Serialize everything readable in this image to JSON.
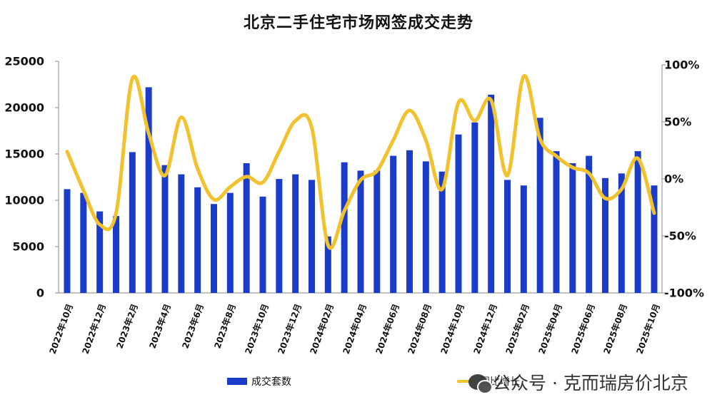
{
  "title": "北京二手住宅市场网签成交走势",
  "left_axis": {
    "ticks": [
      "25000",
      "20000",
      "15000",
      "10000",
      "5000",
      "0"
    ]
  },
  "right_axis": {
    "ticks": [
      "100%",
      "50%",
      "0%",
      "-50%",
      "-100%"
    ]
  },
  "legend": {
    "bar_label": "成交套数",
    "line_label": "同比增长"
  },
  "watermark": "公众号 · 克而瑞房价北京",
  "colors": {
    "bar": "#1a3cc8",
    "line": "#f2c12e"
  },
  "chart_data": {
    "type": "bar+line",
    "title": "北京二手住宅市场网签成交走势",
    "xlabel": "",
    "ylabel": "成交套数",
    "y2label": "同比增长",
    "ylim": [
      0,
      25000
    ],
    "y2lim": [
      -100,
      100
    ],
    "grid": false,
    "legend_position": "bottom",
    "x_tick_labels": [
      "2022年10月",
      "2022年12月",
      "2023年2月",
      "2023年4月",
      "2023年6月",
      "2023年8月",
      "2023年10月",
      "2023年12月",
      "2024年02月",
      "2024年04月",
      "2024年06月",
      "2024年08月",
      "2024年10月",
      "2024年12月",
      "2025年02月",
      "2025年04月",
      "2025年06月",
      "2025年08月",
      "2025年10月"
    ],
    "categories": [
      "2022-10",
      "2022-11",
      "2022-12",
      "2023-01",
      "2023-02",
      "2023-03",
      "2023-04",
      "2023-05",
      "2023-06",
      "2023-07",
      "2023-08",
      "2023-09",
      "2023-10",
      "2023-11",
      "2023-12",
      "2024-01",
      "2024-02",
      "2024-03",
      "2024-04",
      "2024-05",
      "2024-06",
      "2024-07",
      "2024-08",
      "2024-09",
      "2024-10",
      "2024-11",
      "2024-12",
      "2025-01",
      "2025-02",
      "2025-03",
      "2025-04",
      "2025-05",
      "2025-06",
      "2025-07",
      "2025-08",
      "2025-09",
      "2025-10"
    ],
    "series": [
      {
        "name": "成交套数",
        "type": "bar",
        "axis": "left",
        "values": [
          11200,
          10800,
          8800,
          8300,
          15200,
          22200,
          13800,
          12800,
          11400,
          9600,
          10800,
          14000,
          10400,
          12300,
          12800,
          12200,
          6100,
          14100,
          13200,
          13200,
          14800,
          15400,
          14200,
          13100,
          17100,
          18400,
          21400,
          12200,
          11600,
          18900,
          15300,
          14000,
          14800,
          12400,
          12900,
          15300,
          11600
        ]
      },
      {
        "name": "同比增长",
        "type": "line",
        "axis": "right",
        "unit": "%",
        "values": [
          24,
          -10,
          -40,
          -30,
          88,
          40,
          3,
          54,
          9,
          -18,
          -7,
          2,
          -3,
          24,
          51,
          45,
          -58,
          -28,
          -1,
          7,
          34,
          60,
          34,
          -9,
          67,
          51,
          69,
          3,
          90,
          35,
          20,
          10,
          5,
          -17,
          -9,
          18,
          -30
        ]
      }
    ]
  }
}
